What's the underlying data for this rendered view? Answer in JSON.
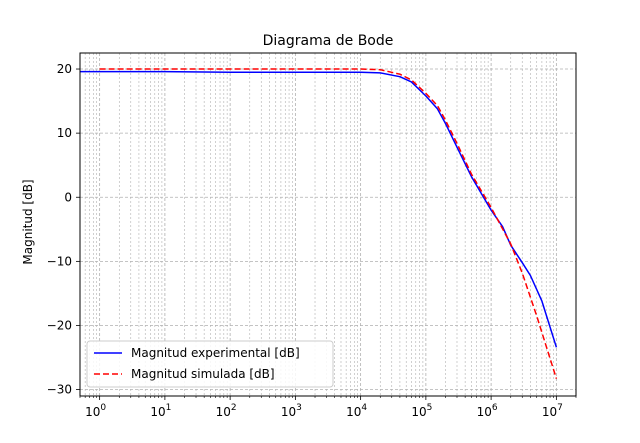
{
  "chart_data": {
    "type": "line",
    "title": "Diagrama de Bode",
    "xlabel": "",
    "ylabel": "Magnitud [dB]",
    "xscale": "log",
    "xlim": [
      0.5,
      20000000
    ],
    "ylim": [
      -31,
      22.5
    ],
    "x_ticks": [
      1,
      10,
      100,
      1000,
      10000,
      100000,
      1000000,
      10000000
    ],
    "x_tick_labels": [
      {
        "base": "10",
        "exp": "0"
      },
      {
        "base": "10",
        "exp": "1"
      },
      {
        "base": "10",
        "exp": "2"
      },
      {
        "base": "10",
        "exp": "3"
      },
      {
        "base": "10",
        "exp": "4"
      },
      {
        "base": "10",
        "exp": "5"
      },
      {
        "base": "10",
        "exp": "6"
      },
      {
        "base": "10",
        "exp": "7"
      }
    ],
    "y_ticks": [
      20,
      10,
      0,
      -10,
      -20,
      -30
    ],
    "y_tick_labels": [
      "20",
      "10",
      "0",
      "−10",
      "−20",
      "−30"
    ],
    "grid": "major-and-minor",
    "legend_position": "lower-left",
    "series": [
      {
        "name": "Magnitud experimental [dB]",
        "color": "#0000ff",
        "style": "solid",
        "x": [
          0.5,
          1,
          10,
          100,
          1000,
          10000,
          20000,
          40000,
          60000,
          100000,
          150000,
          200000,
          300000,
          500000,
          1000000,
          1500000,
          2000000,
          3000000,
          4000000,
          6000000,
          10000000
        ],
        "y": [
          19.6,
          19.6,
          19.6,
          19.5,
          19.5,
          19.5,
          19.4,
          18.8,
          18.0,
          15.8,
          13.8,
          11.5,
          7.8,
          3.2,
          -2.0,
          -4.6,
          -7.5,
          -10.2,
          -12.2,
          -16.2,
          -23.4
        ]
      },
      {
        "name": "Magnitud simulada [dB]",
        "color": "#ff0000",
        "style": "dashed",
        "x": [
          1,
          10,
          100,
          1000,
          10000,
          20000,
          40000,
          60000,
          100000,
          150000,
          200000,
          300000,
          500000,
          1000000,
          2000000,
          3000000,
          5000000,
          10000000
        ],
        "y": [
          20.0,
          20.0,
          20.0,
          20.0,
          20.0,
          19.9,
          19.2,
          18.3,
          16.2,
          14.3,
          12.0,
          8.4,
          3.6,
          -1.6,
          -7.3,
          -11.8,
          -18.5,
          -28.3
        ]
      }
    ]
  }
}
